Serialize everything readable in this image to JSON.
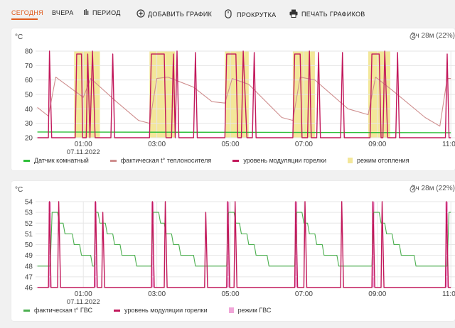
{
  "toolbar": {
    "today": "СЕГОДНЯ",
    "yesterday": "ВЧЕРА",
    "period": "ПЕРИОД",
    "add_chart": "ДОБАВИТЬ ГРАФИК",
    "scroll": "ПРОКРУТКА",
    "print": "ПЕЧАТЬ ГРАФИКОВ"
  },
  "colors": {
    "accent": "#e05a1c",
    "room_sensor": "#2fbf3a",
    "coolant_temp": "#cf8e8e",
    "burner_modulation": "#c2185b",
    "heating_mode": "#f3e79a",
    "dhw_temp": "#4caf50",
    "dhw_mode": "#f0a6d8"
  },
  "icons": {
    "period": "bars-icon",
    "add_chart": "plus-circle-icon",
    "scroll": "mouse-icon",
    "print": "printer-icon",
    "runtime": "flame-icon"
  },
  "chart_data": [
    {
      "type": "line",
      "unit": "°C",
      "runtime": "2ч 28м (22%)",
      "ylim": [
        20,
        80
      ],
      "yticks": [
        20,
        30,
        40,
        50,
        60,
        70,
        80
      ],
      "x_tick_labels": [
        "01:00",
        "03:00",
        "05:00",
        "07:00",
        "09:00",
        "11:00"
      ],
      "date_label": "07.11.2022",
      "legend": [
        "Датчик комнатный",
        "фактическая t° теплоносителя",
        "уровень модуляции горелки",
        "режим отопления"
      ],
      "heating_mode_intervals": [
        [
          0.75,
          1.45
        ],
        [
          2.8,
          3.5
        ],
        [
          4.85,
          5.5
        ],
        [
          6.7,
          7.3
        ],
        [
          8.75,
          9.35
        ]
      ],
      "series": [
        {
          "name": "Датчик комнатный",
          "values": [
            [
              -0.25,
              24
            ],
            [
              11,
              23.5
            ]
          ]
        },
        {
          "name": "фактическая t° теплоносителя",
          "values": [
            [
              -0.25,
              41
            ],
            [
              0.05,
              35
            ],
            [
              0.25,
              62
            ],
            [
              1.0,
              48
            ],
            [
              1.2,
              61
            ],
            [
              1.9,
              45
            ],
            [
              2.5,
              32
            ],
            [
              2.8,
              30
            ],
            [
              3.0,
              61
            ],
            [
              3.3,
              62
            ],
            [
              4.0,
              55
            ],
            [
              4.5,
              45
            ],
            [
              4.85,
              44
            ],
            [
              5.05,
              61
            ],
            [
              5.5,
              57
            ],
            [
              6.4,
              34
            ],
            [
              6.7,
              32
            ],
            [
              6.9,
              62
            ],
            [
              7.3,
              60
            ],
            [
              8.2,
              40
            ],
            [
              8.75,
              36
            ],
            [
              8.95,
              62
            ],
            [
              9.4,
              53
            ],
            [
              10.3,
              34
            ],
            [
              10.7,
              28
            ],
            [
              10.9,
              61
            ],
            [
              11.0,
              61
            ]
          ]
        },
        {
          "name": "уровень модуляции горелки",
          "values": [
            [
              -0.25,
              20
            ],
            [
              0.05,
              20
            ],
            [
              0.08,
              80
            ],
            [
              0.14,
              20
            ],
            [
              0.78,
              20
            ],
            [
              0.82,
              78
            ],
            [
              0.95,
              78
            ],
            [
              0.98,
              20
            ],
            [
              1.08,
              20
            ],
            [
              1.12,
              78
            ],
            [
              1.18,
              20
            ],
            [
              1.25,
              80
            ],
            [
              1.32,
              20
            ],
            [
              1.75,
              20
            ],
            [
              1.8,
              78
            ],
            [
              1.85,
              20
            ],
            [
              2.8,
              20
            ],
            [
              2.85,
              78
            ],
            [
              3.2,
              78
            ],
            [
              3.25,
              20
            ],
            [
              3.4,
              20
            ],
            [
              3.45,
              78
            ],
            [
              3.5,
              20
            ],
            [
              3.55,
              80
            ],
            [
              3.6,
              20
            ],
            [
              4.0,
              20
            ],
            [
              4.05,
              79
            ],
            [
              4.1,
              20
            ],
            [
              4.85,
              20
            ],
            [
              4.9,
              78
            ],
            [
              5.15,
              78
            ],
            [
              5.2,
              20
            ],
            [
              5.3,
              20
            ],
            [
              5.35,
              80
            ],
            [
              5.45,
              20
            ],
            [
              5.6,
              20
            ],
            [
              5.65,
              79
            ],
            [
              5.7,
              20
            ],
            [
              6.7,
              20
            ],
            [
              6.75,
              78
            ],
            [
              6.9,
              78
            ],
            [
              6.95,
              20
            ],
            [
              7.1,
              20
            ],
            [
              7.15,
              80
            ],
            [
              7.2,
              20
            ],
            [
              7.35,
              20
            ],
            [
              7.4,
              79
            ],
            [
              7.45,
              20
            ],
            [
              8.0,
              20
            ],
            [
              8.05,
              79
            ],
            [
              8.1,
              20
            ],
            [
              8.8,
              20
            ],
            [
              8.85,
              78
            ],
            [
              9.05,
              78
            ],
            [
              9.1,
              20
            ],
            [
              9.15,
              20
            ],
            [
              9.2,
              80
            ],
            [
              9.28,
              20
            ],
            [
              9.5,
              20
            ],
            [
              9.55,
              79
            ],
            [
              9.6,
              20
            ],
            [
              10.85,
              20
            ],
            [
              10.9,
              78
            ],
            [
              10.95,
              20
            ],
            [
              11.0,
              20
            ]
          ]
        }
      ]
    },
    {
      "type": "line",
      "unit": "°C",
      "runtime": "2ч 28м (22%)",
      "ylim": [
        46,
        54
      ],
      "yticks": [
        46,
        47,
        48,
        49,
        50,
        51,
        52,
        53,
        54
      ],
      "x_tick_labels": [
        "01:00",
        "03:00",
        "05:00",
        "07:00",
        "09:00",
        "11:00"
      ],
      "date_label": "07.11.2022",
      "legend": [
        "фактическая t° ГВС",
        "уровень модуляции горелки",
        "режим ГВС"
      ],
      "dhw_mode_intervals": [
        [
          0.05,
          0.12
        ],
        [
          1.3,
          1.36
        ],
        [
          2.85,
          2.92
        ],
        [
          4.9,
          4.97
        ],
        [
          6.75,
          6.82
        ],
        [
          8.85,
          8.92
        ],
        [
          10.85,
          10.92
        ]
      ],
      "series": [
        {
          "name": "фактическая t° ГВС",
          "values": [
            [
              -0.25,
              48
            ],
            [
              0.1,
              48
            ],
            [
              0.15,
              53
            ],
            [
              0.3,
              53
            ],
            [
              0.35,
              52
            ],
            [
              0.45,
              52
            ],
            [
              0.5,
              51
            ],
            [
              0.7,
              51
            ],
            [
              0.75,
              50
            ],
            [
              0.9,
              50
            ],
            [
              0.95,
              49
            ],
            [
              1.2,
              49
            ],
            [
              1.25,
              48
            ],
            [
              1.3,
              48
            ],
            [
              1.33,
              53
            ],
            [
              1.4,
              53
            ],
            [
              1.45,
              52
            ],
            [
              1.6,
              52
            ],
            [
              1.65,
              51
            ],
            [
              1.8,
              51
            ],
            [
              1.85,
              50
            ],
            [
              2.0,
              50
            ],
            [
              2.05,
              49
            ],
            [
              2.4,
              49
            ],
            [
              2.45,
              48
            ],
            [
              2.85,
              48
            ],
            [
              2.9,
              53
            ],
            [
              3.05,
              53
            ],
            [
              3.1,
              52
            ],
            [
              3.2,
              52
            ],
            [
              3.25,
              51
            ],
            [
              3.4,
              51
            ],
            [
              3.45,
              50
            ],
            [
              3.6,
              50
            ],
            [
              3.65,
              49
            ],
            [
              4.0,
              49
            ],
            [
              4.05,
              48
            ],
            [
              4.9,
              48
            ],
            [
              4.95,
              53
            ],
            [
              5.1,
              53
            ],
            [
              5.15,
              52
            ],
            [
              5.25,
              52
            ],
            [
              5.3,
              51
            ],
            [
              5.45,
              51
            ],
            [
              5.5,
              50
            ],
            [
              5.65,
              50
            ],
            [
              5.7,
              49
            ],
            [
              6.0,
              49
            ],
            [
              6.05,
              48
            ],
            [
              6.75,
              48
            ],
            [
              6.8,
              53
            ],
            [
              6.95,
              53
            ],
            [
              7.0,
              52
            ],
            [
              7.1,
              52
            ],
            [
              7.15,
              51
            ],
            [
              7.3,
              51
            ],
            [
              7.35,
              50
            ],
            [
              7.5,
              50
            ],
            [
              7.55,
              49
            ],
            [
              7.9,
              49
            ],
            [
              7.95,
              48
            ],
            [
              8.85,
              48
            ],
            [
              8.9,
              53
            ],
            [
              9.05,
              53
            ],
            [
              9.1,
              52
            ],
            [
              9.2,
              52
            ],
            [
              9.25,
              51
            ],
            [
              9.4,
              51
            ],
            [
              9.45,
              50
            ],
            [
              9.6,
              50
            ],
            [
              9.65,
              49
            ],
            [
              10.0,
              49
            ],
            [
              10.05,
              48
            ],
            [
              10.9,
              48
            ],
            [
              10.95,
              53
            ],
            [
              11.0,
              53
            ]
          ]
        },
        {
          "name": "уровень модуляции горелки",
          "values": [
            [
              -0.25,
              46
            ],
            [
              0.05,
              46
            ],
            [
              0.08,
              54
            ],
            [
              0.12,
              46
            ],
            [
              0.3,
              46
            ],
            [
              0.33,
              54
            ],
            [
              0.38,
              46
            ],
            [
              1.3,
              46
            ],
            [
              1.33,
              54
            ],
            [
              1.38,
              46
            ],
            [
              1.5,
              46
            ],
            [
              1.53,
              53
            ],
            [
              1.58,
              46
            ],
            [
              2.85,
              46
            ],
            [
              2.88,
              54
            ],
            [
              2.93,
              46
            ],
            [
              3.2,
              46
            ],
            [
              3.23,
              54
            ],
            [
              3.28,
              46
            ],
            [
              4.3,
              46
            ],
            [
              4.33,
              53
            ],
            [
              4.38,
              46
            ],
            [
              4.9,
              46
            ],
            [
              4.93,
              54
            ],
            [
              4.98,
              46
            ],
            [
              5.1,
              46
            ],
            [
              5.13,
              54
            ],
            [
              5.18,
              46
            ],
            [
              6.75,
              46
            ],
            [
              6.78,
              54
            ],
            [
              6.83,
              46
            ],
            [
              7.0,
              46
            ],
            [
              7.03,
              54
            ],
            [
              7.08,
              46
            ],
            [
              8.0,
              46
            ],
            [
              8.03,
              54
            ],
            [
              8.08,
              46
            ],
            [
              8.85,
              46
            ],
            [
              8.88,
              54
            ],
            [
              8.93,
              46
            ],
            [
              9.1,
              46
            ],
            [
              9.13,
              54
            ],
            [
              9.18,
              46
            ],
            [
              10.85,
              46
            ],
            [
              10.88,
              54
            ],
            [
              10.93,
              46
            ],
            [
              11.0,
              46
            ]
          ]
        }
      ]
    }
  ]
}
